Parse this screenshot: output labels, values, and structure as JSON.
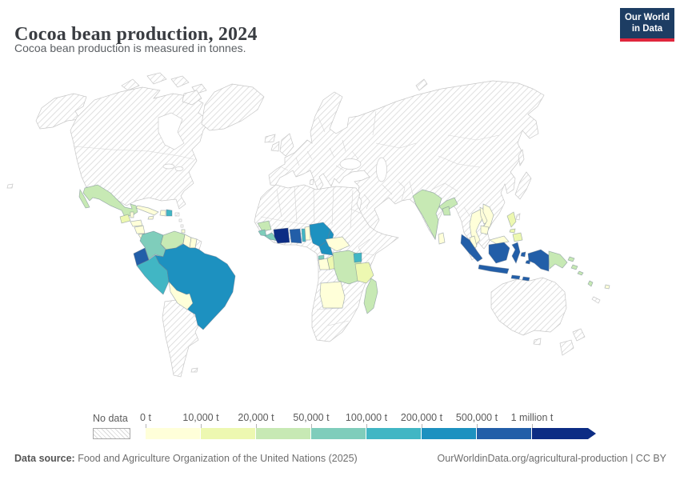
{
  "header": {
    "title": "Cocoa bean production, 2024",
    "subtitle": "Cocoa bean production is measured in tonnes.",
    "logo": {
      "line1": "Our World",
      "line2": "in Data"
    }
  },
  "legend": {
    "no_data_label": "No data",
    "bins": [
      {
        "label": "0 t",
        "range": "0 – 10,000 t",
        "color": "#ffffd9"
      },
      {
        "label": "10,000 t",
        "range": "10,000 – 20,000 t",
        "color": "#edf8b1"
      },
      {
        "label": "20,000 t",
        "range": "20,000 – 50,000 t",
        "color": "#c7e9b4"
      },
      {
        "label": "50,000 t",
        "range": "50,000 – 100,000 t",
        "color": "#7fcdbb"
      },
      {
        "label": "100,000 t",
        "range": "100,000 – 200,000 t",
        "color": "#41b6c4"
      },
      {
        "label": "200,000 t",
        "range": "200,000 – 500,000 t",
        "color": "#1d91c0"
      },
      {
        "label": "500,000 t",
        "range": "500,000 – 1 million t",
        "color": "#225ea8"
      },
      {
        "label": "1 million t",
        "range": "over 1 million t",
        "color": "#0c2c84"
      }
    ]
  },
  "chart_data": {
    "type": "choropleth",
    "title": "Cocoa bean production, 2024",
    "unit": "tonnes",
    "legend_position": "bottom",
    "bin_edges_tonnes": [
      0,
      10000,
      20000,
      50000,
      100000,
      200000,
      500000,
      1000000
    ],
    "no_data_style": "diagonal-hatch",
    "countries": "see map.countries (bin = index into legend.bins)"
  },
  "map": {
    "countries": {
      "mexico": {
        "label": "Mexico",
        "bin": 2
      },
      "guatemala": {
        "label": "Guatemala",
        "bin": 1
      },
      "belize": {
        "label": "Belize",
        "bin": 0
      },
      "honduras": {
        "label": "Honduras",
        "bin": 0
      },
      "nicaragua": {
        "label": "Nicaragua",
        "bin": 0
      },
      "costa_rica": {
        "label": "Costa Rica",
        "bin": 0
      },
      "panama": {
        "label": "Panama",
        "bin": 1
      },
      "cuba": {
        "label": "Cuba",
        "bin": 0
      },
      "jamaica": {
        "label": "Jamaica",
        "bin": 0
      },
      "haiti": {
        "label": "Haiti",
        "bin": 0
      },
      "dominican_republic": {
        "label": "Dominican Republic",
        "bin": 4
      },
      "trinidad_and_tobago": {
        "label": "Trinidad and Tobago",
        "bin": 0
      },
      "colombia": {
        "label": "Colombia",
        "bin": 3
      },
      "venezuela": {
        "label": "Venezuela",
        "bin": 2
      },
      "guyana": {
        "label": "Guyana",
        "bin": 0
      },
      "suriname": {
        "label": "Suriname",
        "bin": 0
      },
      "ecuador": {
        "label": "Ecuador",
        "bin": 6
      },
      "peru": {
        "label": "Peru",
        "bin": 4
      },
      "brazil": {
        "label": "Brazil",
        "bin": 5
      },
      "bolivia": {
        "label": "Bolivia",
        "bin": 0
      },
      "guinea": {
        "label": "Guinea",
        "bin": 2
      },
      "sierra_leone": {
        "label": "Sierra Leone",
        "bin": 3
      },
      "liberia": {
        "label": "Liberia",
        "bin": 3
      },
      "cote_divoire": {
        "label": "Cote d'Ivoire",
        "bin": 7
      },
      "ghana": {
        "label": "Ghana",
        "bin": 6
      },
      "togo": {
        "label": "Togo",
        "bin": 4
      },
      "benin": {
        "label": "Benin",
        "bin": 0
      },
      "nigeria": {
        "label": "Nigeria",
        "bin": 5
      },
      "cameroon": {
        "label": "Cameroon",
        "bin": 5
      },
      "equatorial_guinea": {
        "label": "Equatorial Guinea",
        "bin": 3
      },
      "gabon": {
        "label": "Gabon",
        "bin": 0
      },
      "congo": {
        "label": "Congo",
        "bin": 1
      },
      "drc": {
        "label": "Democratic Republic of Congo",
        "bin": 2
      },
      "central_african_republic": {
        "label": "Central African Republic",
        "bin": 0
      },
      "angola": {
        "label": "Angola",
        "bin": 0
      },
      "uganda": {
        "label": "Uganda",
        "bin": 4
      },
      "tanzania": {
        "label": "Tanzania",
        "bin": 1
      },
      "madagascar": {
        "label": "Madagascar",
        "bin": 2
      },
      "india": {
        "label": "India",
        "bin": 2
      },
      "bangladesh": {
        "label": "Bangladesh",
        "bin": 2
      },
      "sri_lanka": {
        "label": "Sri Lanka",
        "bin": 0
      },
      "thailand": {
        "label": "Thailand",
        "bin": 0
      },
      "laos": {
        "label": "Laos",
        "bin": 0
      },
      "vietnam": {
        "label": "Vietnam",
        "bin": 0
      },
      "cambodia": {
        "label": "Cambodia",
        "bin": 0
      },
      "malaysia": {
        "label": "Malaysia",
        "bin": 0
      },
      "philippines": {
        "label": "Philippines",
        "bin": 1
      },
      "indonesia": {
        "label": "Indonesia",
        "bin": 6
      },
      "papua_new_guinea": {
        "label": "Papua New Guinea",
        "bin": 2
      },
      "solomon_islands": {
        "label": "Solomon Islands",
        "bin": 2
      },
      "vanuatu": {
        "label": "Vanuatu",
        "bin": 2
      },
      "fiji": {
        "label": "Fiji",
        "bin": 0
      }
    }
  },
  "footer": {
    "source_label": "Data source:",
    "source_text": " Food and Agriculture Organization of the United Nations (2025)",
    "right_text": "OurWorldinData.org/agricultural-production | CC BY"
  }
}
